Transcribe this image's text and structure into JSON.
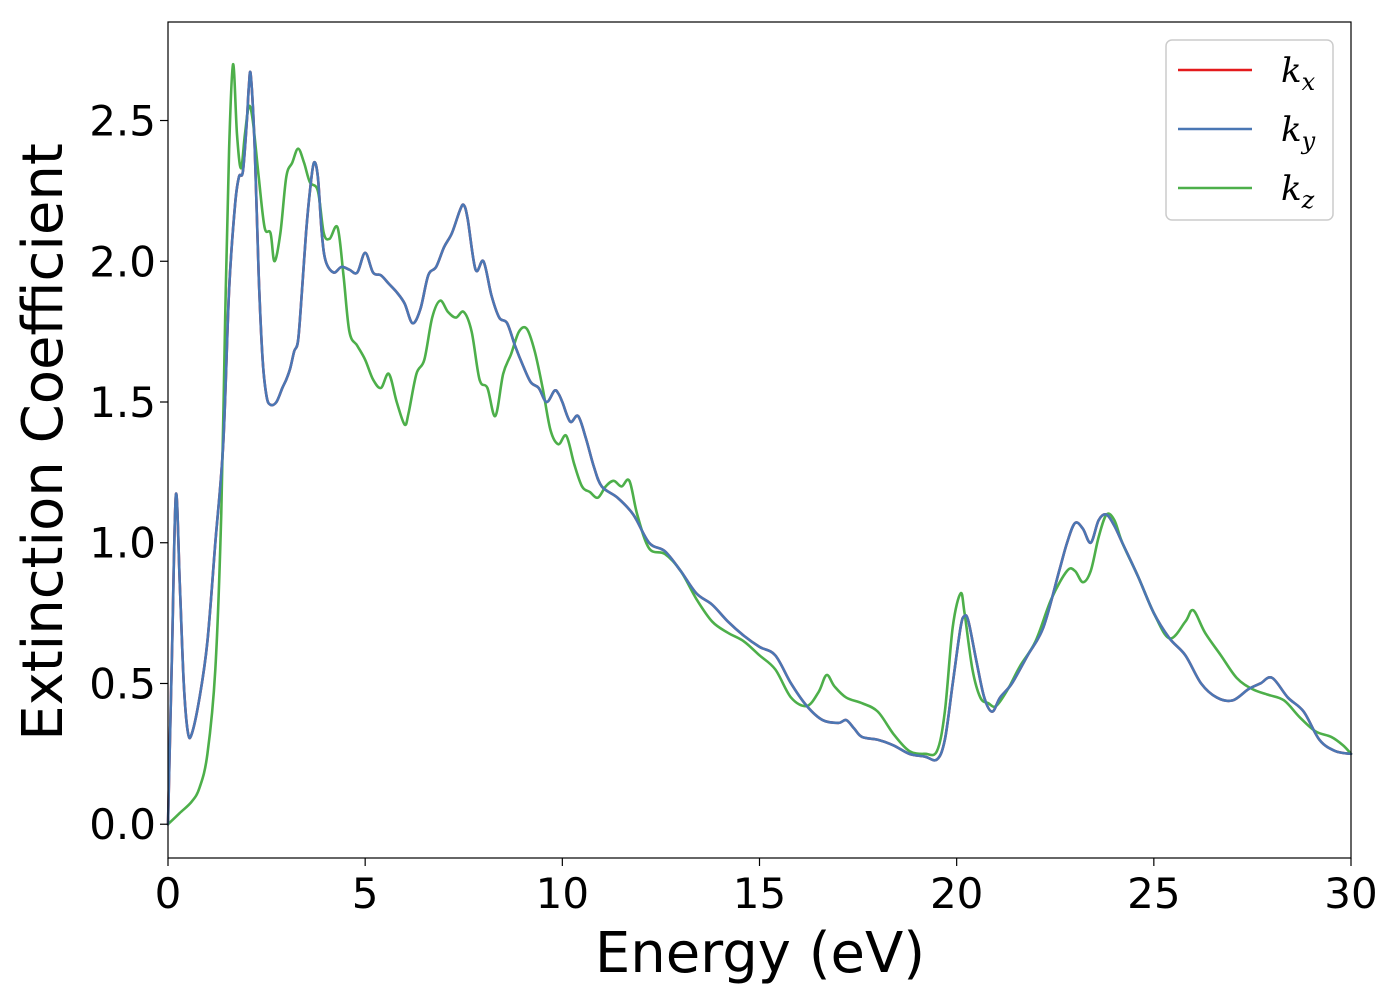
{
  "chart_data": {
    "type": "line",
    "title": "",
    "xlabel": "Energy (eV)",
    "ylabel": "Extinction Coefficient",
    "xlim": [
      0,
      30
    ],
    "ylim": [
      -0.12,
      2.85
    ],
    "xticks": [
      0,
      5,
      10,
      15,
      20,
      25,
      30
    ],
    "xtick_labels": [
      "0",
      "5",
      "10",
      "15",
      "20",
      "25",
      "30"
    ],
    "yticks": [
      0.0,
      0.5,
      1.0,
      1.5,
      2.0,
      2.5
    ],
    "ytick_labels": [
      "0.0",
      "0.5",
      "1.0",
      "1.5",
      "2.0",
      "2.5"
    ],
    "grid": false,
    "legend_position": "top-right",
    "series": [
      {
        "name": "kx",
        "label_main": "k",
        "label_sub": "x",
        "color": "#e41a1c",
        "x": [
          0,
          0.1,
          0.2,
          0.3,
          0.4,
          0.5,
          0.6,
          0.8,
          1.0,
          1.2,
          1.4,
          1.55,
          1.7,
          1.8,
          1.9,
          2.0,
          2.05,
          2.1,
          2.2,
          2.3,
          2.4,
          2.5,
          2.6,
          2.75,
          2.9,
          3.0,
          3.1,
          3.2,
          3.3,
          3.4,
          3.5,
          3.6,
          3.7,
          3.8,
          3.9,
          4.0,
          4.2,
          4.4,
          4.6,
          4.8,
          5.0,
          5.2,
          5.4,
          5.6,
          5.8,
          6.0,
          6.2,
          6.4,
          6.6,
          6.8,
          7.0,
          7.2,
          7.4,
          7.5,
          7.6,
          7.8,
          8.0,
          8.2,
          8.4,
          8.6,
          8.8,
          9.0,
          9.2,
          9.4,
          9.6,
          9.8,
          9.9,
          10.0,
          10.2,
          10.4,
          10.6,
          10.8,
          11.0,
          11.4,
          11.8,
          12.2,
          12.6,
          13.0,
          13.4,
          13.8,
          14.2,
          14.6,
          15.0,
          15.4,
          15.8,
          16.2,
          16.6,
          17.0,
          17.2,
          17.4,
          17.6,
          18.0,
          18.4,
          18.8,
          19.2,
          19.5,
          19.7,
          19.9,
          20.1,
          20.2,
          20.3,
          20.5,
          20.7,
          20.9,
          21.1,
          21.4,
          21.8,
          22.2,
          22.6,
          22.8,
          23.0,
          23.2,
          23.4,
          23.6,
          23.8,
          24.0,
          24.2,
          24.6,
          25.0,
          25.4,
          25.8,
          26.2,
          26.6,
          27.0,
          27.4,
          27.7,
          28.0,
          28.4,
          28.8,
          29.2,
          29.6,
          30.0
        ],
        "y": [
          0.0,
          0.6,
          1.17,
          0.85,
          0.5,
          0.33,
          0.32,
          0.45,
          0.65,
          1.0,
          1.35,
          1.9,
          2.2,
          2.3,
          2.32,
          2.5,
          2.62,
          2.66,
          2.4,
          1.95,
          1.65,
          1.52,
          1.49,
          1.5,
          1.55,
          1.58,
          1.62,
          1.68,
          1.72,
          1.9,
          2.1,
          2.25,
          2.35,
          2.3,
          2.1,
          2.0,
          1.96,
          1.98,
          1.97,
          1.96,
          2.03,
          1.96,
          1.95,
          1.92,
          1.89,
          1.85,
          1.78,
          1.83,
          1.95,
          1.98,
          2.05,
          2.1,
          2.18,
          2.2,
          2.15,
          1.97,
          2.0,
          1.88,
          1.8,
          1.78,
          1.7,
          1.63,
          1.57,
          1.55,
          1.5,
          1.54,
          1.53,
          1.5,
          1.43,
          1.45,
          1.37,
          1.27,
          1.2,
          1.16,
          1.1,
          1.0,
          0.97,
          0.9,
          0.82,
          0.78,
          0.72,
          0.67,
          0.63,
          0.6,
          0.5,
          0.42,
          0.37,
          0.36,
          0.37,
          0.34,
          0.31,
          0.3,
          0.28,
          0.25,
          0.24,
          0.23,
          0.3,
          0.5,
          0.7,
          0.74,
          0.72,
          0.58,
          0.45,
          0.4,
          0.45,
          0.5,
          0.6,
          0.7,
          0.9,
          1.0,
          1.07,
          1.05,
          1.0,
          1.08,
          1.1,
          1.06,
          1.0,
          0.88,
          0.75,
          0.66,
          0.6,
          0.5,
          0.45,
          0.44,
          0.48,
          0.5,
          0.52,
          0.45,
          0.4,
          0.3,
          0.26,
          0.25
        ]
      },
      {
        "name": "ky",
        "label_main": "k",
        "label_sub": "y",
        "color": "#4a77b4",
        "x": [
          0,
          0.1,
          0.2,
          0.3,
          0.4,
          0.5,
          0.6,
          0.8,
          1.0,
          1.2,
          1.4,
          1.55,
          1.7,
          1.8,
          1.9,
          2.0,
          2.05,
          2.1,
          2.2,
          2.3,
          2.4,
          2.5,
          2.6,
          2.75,
          2.9,
          3.0,
          3.1,
          3.2,
          3.3,
          3.4,
          3.5,
          3.6,
          3.7,
          3.8,
          3.9,
          4.0,
          4.2,
          4.4,
          4.6,
          4.8,
          5.0,
          5.2,
          5.4,
          5.6,
          5.8,
          6.0,
          6.2,
          6.4,
          6.6,
          6.8,
          7.0,
          7.2,
          7.4,
          7.5,
          7.6,
          7.8,
          8.0,
          8.2,
          8.4,
          8.6,
          8.8,
          9.0,
          9.2,
          9.4,
          9.6,
          9.8,
          9.9,
          10.0,
          10.2,
          10.4,
          10.6,
          10.8,
          11.0,
          11.4,
          11.8,
          12.2,
          12.6,
          13.0,
          13.4,
          13.8,
          14.2,
          14.6,
          15.0,
          15.4,
          15.8,
          16.2,
          16.6,
          17.0,
          17.2,
          17.4,
          17.6,
          18.0,
          18.4,
          18.8,
          19.2,
          19.5,
          19.7,
          19.9,
          20.1,
          20.2,
          20.3,
          20.5,
          20.7,
          20.9,
          21.1,
          21.4,
          21.8,
          22.2,
          22.6,
          22.8,
          23.0,
          23.2,
          23.4,
          23.6,
          23.8,
          24.0,
          24.2,
          24.6,
          25.0,
          25.4,
          25.8,
          26.2,
          26.6,
          27.0,
          27.4,
          27.7,
          28.0,
          28.4,
          28.8,
          29.2,
          29.6,
          30.0
        ],
        "y": [
          0.0,
          0.6,
          1.17,
          0.85,
          0.5,
          0.33,
          0.32,
          0.45,
          0.65,
          1.0,
          1.35,
          1.9,
          2.2,
          2.3,
          2.32,
          2.5,
          2.62,
          2.66,
          2.4,
          1.95,
          1.65,
          1.52,
          1.49,
          1.5,
          1.55,
          1.58,
          1.62,
          1.68,
          1.72,
          1.9,
          2.1,
          2.25,
          2.35,
          2.3,
          2.1,
          2.0,
          1.96,
          1.98,
          1.97,
          1.96,
          2.03,
          1.96,
          1.95,
          1.92,
          1.89,
          1.85,
          1.78,
          1.83,
          1.95,
          1.98,
          2.05,
          2.1,
          2.18,
          2.2,
          2.15,
          1.97,
          2.0,
          1.88,
          1.8,
          1.78,
          1.7,
          1.63,
          1.57,
          1.55,
          1.5,
          1.54,
          1.53,
          1.5,
          1.43,
          1.45,
          1.37,
          1.27,
          1.2,
          1.16,
          1.1,
          1.0,
          0.97,
          0.9,
          0.82,
          0.78,
          0.72,
          0.67,
          0.63,
          0.6,
          0.5,
          0.42,
          0.37,
          0.36,
          0.37,
          0.34,
          0.31,
          0.3,
          0.28,
          0.25,
          0.24,
          0.23,
          0.3,
          0.5,
          0.7,
          0.74,
          0.72,
          0.58,
          0.45,
          0.4,
          0.45,
          0.5,
          0.6,
          0.7,
          0.9,
          1.0,
          1.07,
          1.05,
          1.0,
          1.08,
          1.1,
          1.06,
          1.0,
          0.88,
          0.75,
          0.66,
          0.6,
          0.5,
          0.45,
          0.44,
          0.48,
          0.5,
          0.52,
          0.45,
          0.4,
          0.3,
          0.26,
          0.25
        ]
      },
      {
        "name": "kz",
        "label_main": "k",
        "label_sub": "z",
        "color": "#4daf4a",
        "x": [
          0,
          0.3,
          0.6,
          0.8,
          1.0,
          1.2,
          1.35,
          1.45,
          1.55,
          1.65,
          1.75,
          1.85,
          1.95,
          2.05,
          2.15,
          2.3,
          2.45,
          2.6,
          2.7,
          2.85,
          3.0,
          3.15,
          3.3,
          3.45,
          3.6,
          3.8,
          3.95,
          4.1,
          4.3,
          4.45,
          4.6,
          4.8,
          5.0,
          5.2,
          5.4,
          5.6,
          5.8,
          6.0,
          6.1,
          6.3,
          6.5,
          6.7,
          6.9,
          7.1,
          7.3,
          7.5,
          7.7,
          7.9,
          8.1,
          8.3,
          8.5,
          8.7,
          8.9,
          9.1,
          9.3,
          9.5,
          9.7,
          9.9,
          10.1,
          10.3,
          10.5,
          10.7,
          10.9,
          11.1,
          11.3,
          11.5,
          11.7,
          11.9,
          12.2,
          12.6,
          13.0,
          13.4,
          13.8,
          14.2,
          14.6,
          15.0,
          15.4,
          15.8,
          16.2,
          16.5,
          16.7,
          16.9,
          17.2,
          17.6,
          18.0,
          18.4,
          18.8,
          19.2,
          19.5,
          19.7,
          19.9,
          20.1,
          20.2,
          20.4,
          20.6,
          20.8,
          21.0,
          21.3,
          21.6,
          22.0,
          22.4,
          22.8,
          23.0,
          23.2,
          23.4,
          23.6,
          23.8,
          24.0,
          24.2,
          24.6,
          25.0,
          25.4,
          25.8,
          26.0,
          26.3,
          26.7,
          27.1,
          27.5,
          27.9,
          28.3,
          28.7,
          29.1,
          29.5,
          29.8,
          30.0
        ],
        "y": [
          0.0,
          0.04,
          0.08,
          0.13,
          0.25,
          0.55,
          1.1,
          1.8,
          2.4,
          2.7,
          2.45,
          2.33,
          2.45,
          2.55,
          2.5,
          2.3,
          2.12,
          2.1,
          2.0,
          2.1,
          2.3,
          2.35,
          2.4,
          2.35,
          2.28,
          2.25,
          2.1,
          2.08,
          2.12,
          1.95,
          1.75,
          1.7,
          1.65,
          1.58,
          1.55,
          1.6,
          1.5,
          1.42,
          1.46,
          1.6,
          1.65,
          1.8,
          1.86,
          1.82,
          1.8,
          1.82,
          1.75,
          1.58,
          1.55,
          1.45,
          1.6,
          1.67,
          1.75,
          1.76,
          1.68,
          1.55,
          1.4,
          1.35,
          1.38,
          1.28,
          1.2,
          1.18,
          1.16,
          1.2,
          1.22,
          1.2,
          1.22,
          1.1,
          0.98,
          0.96,
          0.9,
          0.8,
          0.72,
          0.68,
          0.65,
          0.6,
          0.55,
          0.45,
          0.42,
          0.47,
          0.53,
          0.49,
          0.45,
          0.43,
          0.4,
          0.32,
          0.26,
          0.25,
          0.26,
          0.4,
          0.7,
          0.82,
          0.75,
          0.55,
          0.45,
          0.43,
          0.42,
          0.48,
          0.56,
          0.65,
          0.8,
          0.9,
          0.9,
          0.86,
          0.9,
          1.02,
          1.1,
          1.08,
          1.0,
          0.88,
          0.75,
          0.66,
          0.72,
          0.76,
          0.68,
          0.6,
          0.52,
          0.48,
          0.46,
          0.44,
          0.38,
          0.33,
          0.31,
          0.28,
          0.25
        ]
      }
    ]
  }
}
